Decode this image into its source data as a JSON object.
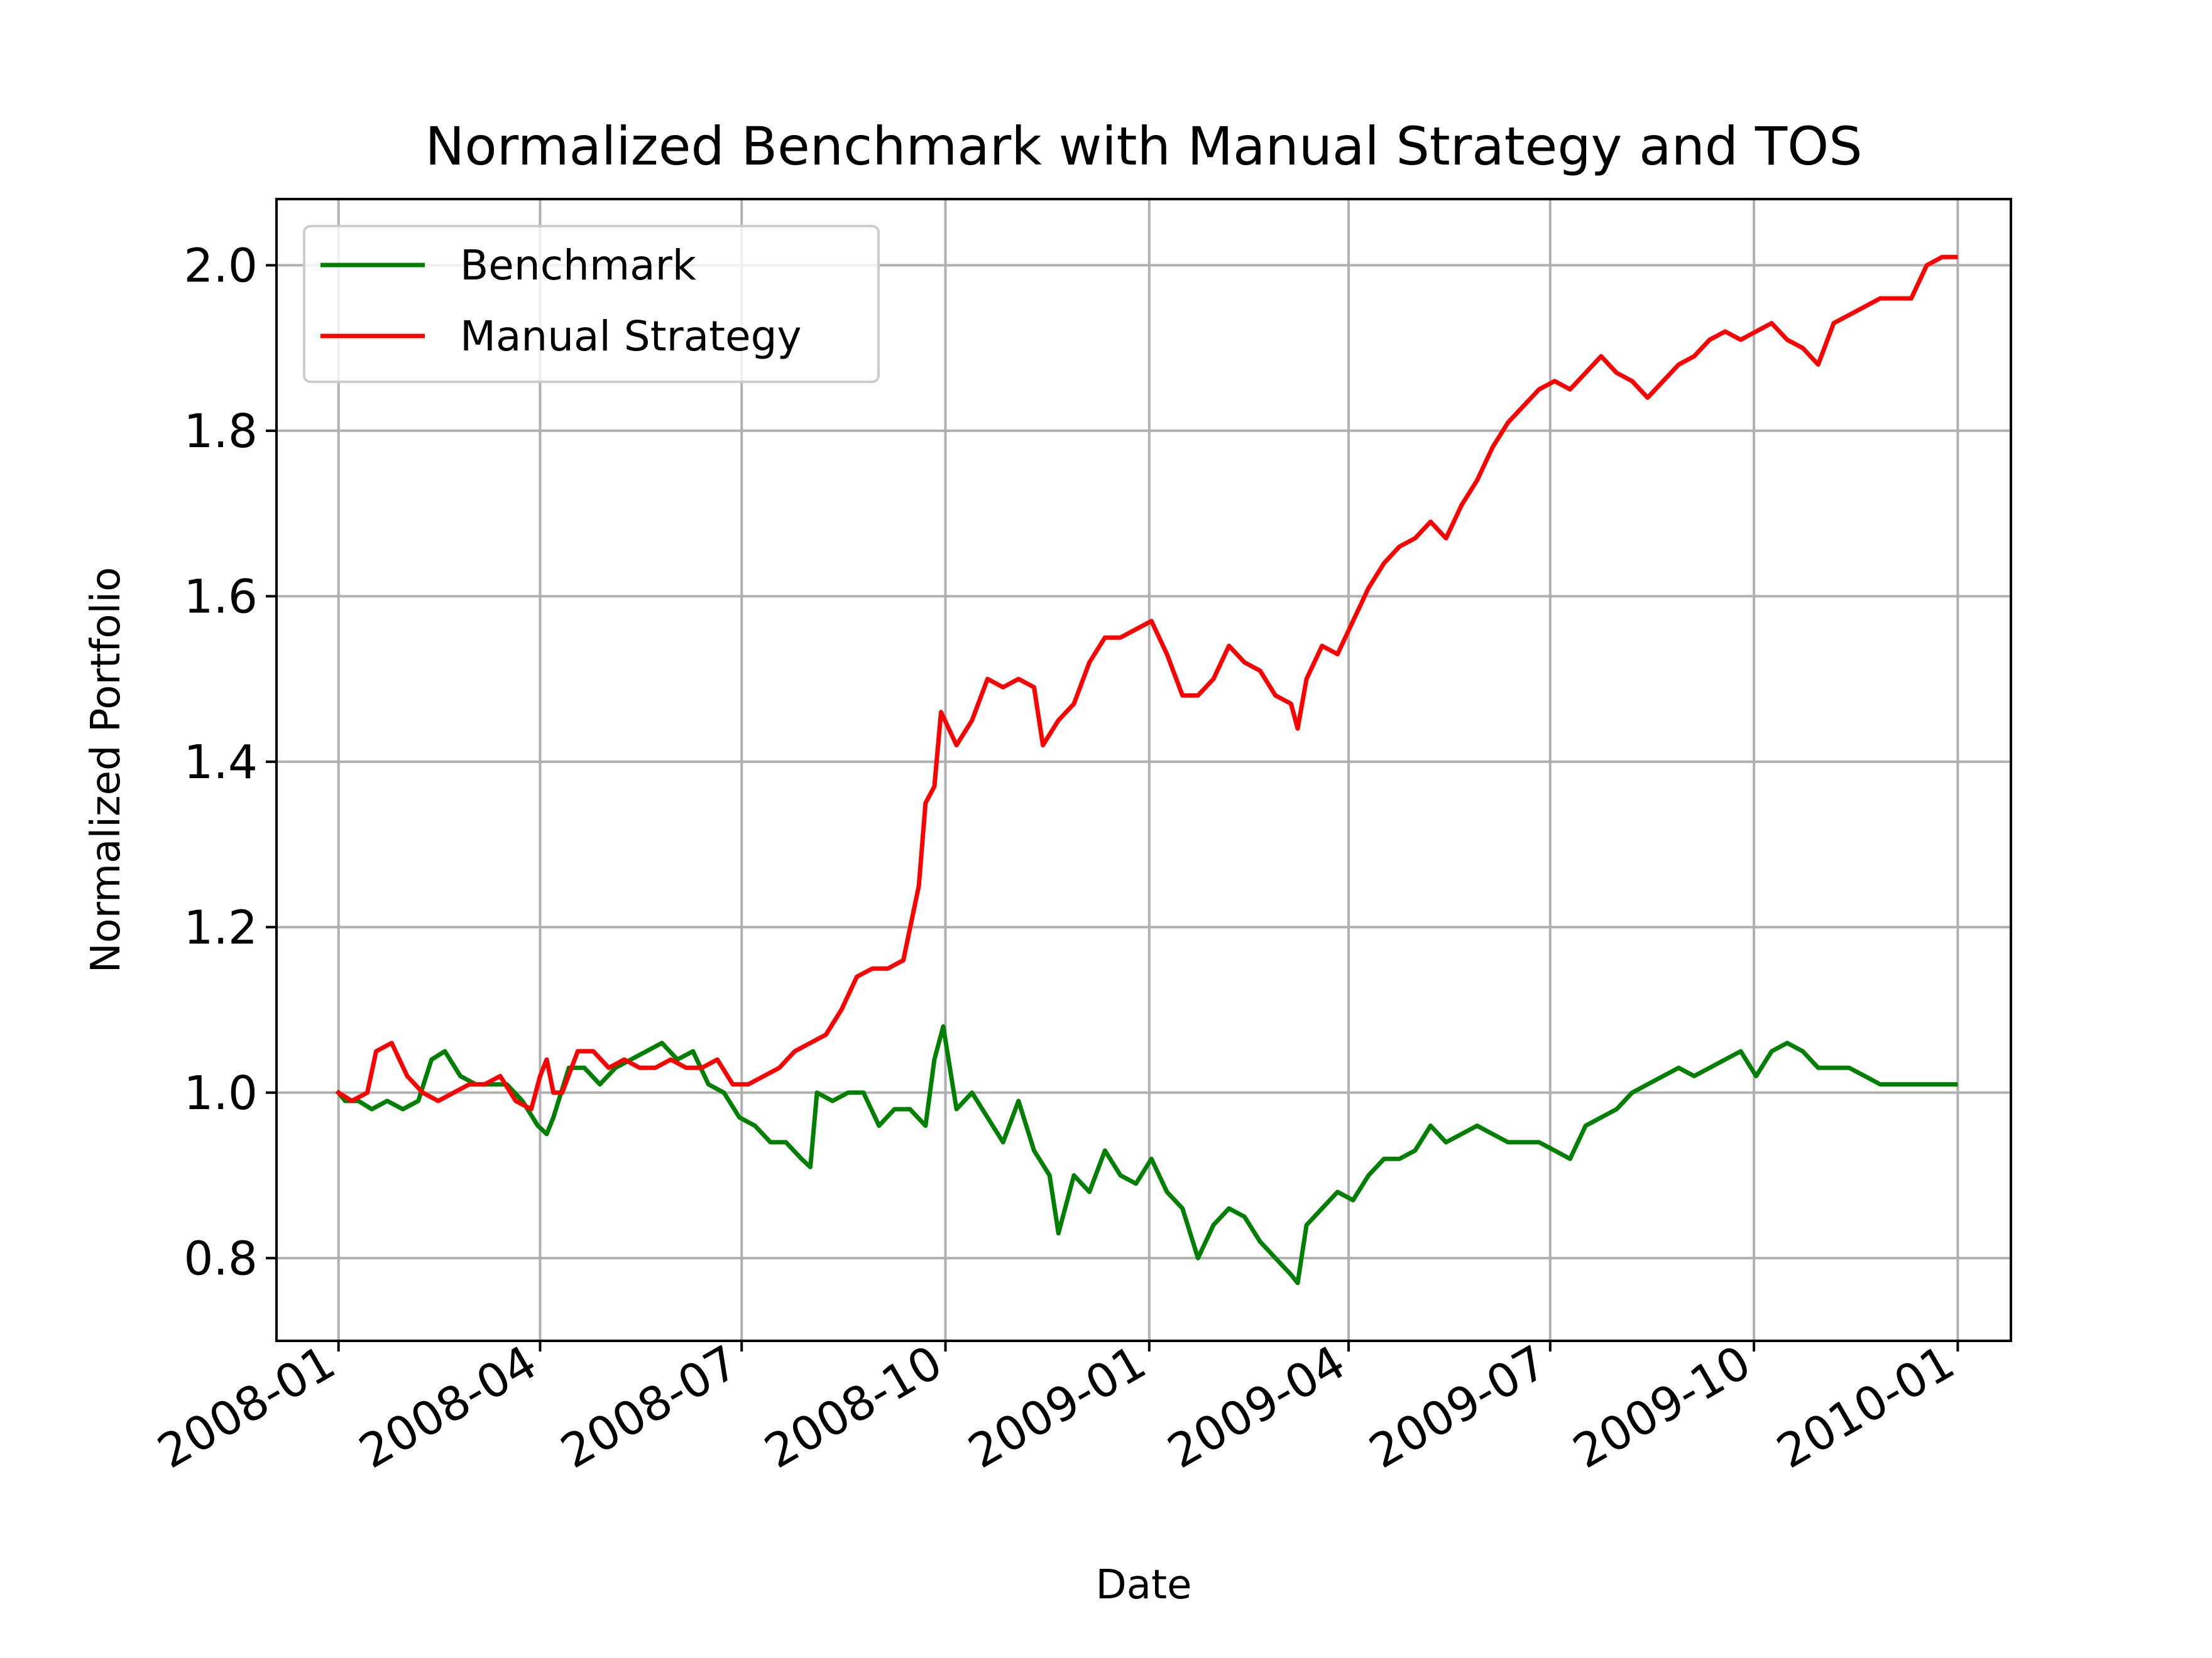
{
  "chart_data": {
    "type": "line",
    "title": "Normalized Benchmark with Manual Strategy and TOS",
    "xlabel": "Date",
    "ylabel": "Normalized Portfolio",
    "x_axis_type": "date",
    "xlim": [
      "2007-12-04",
      "2010-01-25"
    ],
    "ylim": [
      0.7,
      2.08
    ],
    "grid": true,
    "legend_position": "upper-left",
    "x_ticks": [
      {
        "date": "2008-01-01",
        "label": "2008-01"
      },
      {
        "date": "2008-04-01",
        "label": "2008-04"
      },
      {
        "date": "2008-07-01",
        "label": "2008-07"
      },
      {
        "date": "2008-10-01",
        "label": "2008-10"
      },
      {
        "date": "2009-01-01",
        "label": "2009-01"
      },
      {
        "date": "2009-04-01",
        "label": "2009-04"
      },
      {
        "date": "2009-07-01",
        "label": "2009-07"
      },
      {
        "date": "2009-10-01",
        "label": "2009-10"
      },
      {
        "date": "2010-01-01",
        "label": "2010-01"
      }
    ],
    "y_ticks": [
      {
        "value": 0.8,
        "label": "0.8"
      },
      {
        "value": 1.0,
        "label": "1.0"
      },
      {
        "value": 1.2,
        "label": "1.2"
      },
      {
        "value": 1.4,
        "label": "1.4"
      },
      {
        "value": 1.6,
        "label": "1.6"
      },
      {
        "value": 1.8,
        "label": "1.8"
      },
      {
        "value": 2.0,
        "label": "2.0"
      }
    ],
    "series": [
      {
        "name": "Benchmark",
        "color": "#008000",
        "points": [
          [
            "2008-01-01",
            1.0
          ],
          [
            "2008-01-04",
            0.99
          ],
          [
            "2008-01-10",
            0.99
          ],
          [
            "2008-01-16",
            0.98
          ],
          [
            "2008-01-23",
            0.99
          ],
          [
            "2008-01-30",
            0.98
          ],
          [
            "2008-02-06",
            0.99
          ],
          [
            "2008-02-12",
            1.04
          ],
          [
            "2008-02-18",
            1.05
          ],
          [
            "2008-02-25",
            1.02
          ],
          [
            "2008-03-03",
            1.01
          ],
          [
            "2008-03-10",
            1.01
          ],
          [
            "2008-03-17",
            1.01
          ],
          [
            "2008-03-24",
            0.99
          ],
          [
            "2008-03-31",
            0.96
          ],
          [
            "2008-04-04",
            0.95
          ],
          [
            "2008-04-07",
            0.97
          ],
          [
            "2008-04-14",
            1.03
          ],
          [
            "2008-04-21",
            1.03
          ],
          [
            "2008-04-28",
            1.01
          ],
          [
            "2008-05-05",
            1.03
          ],
          [
            "2008-05-12",
            1.04
          ],
          [
            "2008-05-19",
            1.05
          ],
          [
            "2008-05-26",
            1.06
          ],
          [
            "2008-06-02",
            1.04
          ],
          [
            "2008-06-09",
            1.05
          ],
          [
            "2008-06-16",
            1.01
          ],
          [
            "2008-06-23",
            1.0
          ],
          [
            "2008-06-30",
            0.97
          ],
          [
            "2008-07-07",
            0.96
          ],
          [
            "2008-07-14",
            0.94
          ],
          [
            "2008-07-21",
            0.94
          ],
          [
            "2008-07-28",
            0.92
          ],
          [
            "2008-08-01",
            0.91
          ],
          [
            "2008-08-04",
            1.0
          ],
          [
            "2008-08-11",
            0.99
          ],
          [
            "2008-08-18",
            1.0
          ],
          [
            "2008-08-25",
            1.0
          ],
          [
            "2008-09-01",
            0.96
          ],
          [
            "2008-09-08",
            0.98
          ],
          [
            "2008-09-15",
            0.98
          ],
          [
            "2008-09-22",
            0.96
          ],
          [
            "2008-09-26",
            1.04
          ],
          [
            "2008-09-30",
            1.08
          ],
          [
            "2008-10-06",
            0.98
          ],
          [
            "2008-10-13",
            1.0
          ],
          [
            "2008-10-20",
            0.97
          ],
          [
            "2008-10-27",
            0.94
          ],
          [
            "2008-11-03",
            0.99
          ],
          [
            "2008-11-10",
            0.93
          ],
          [
            "2008-11-17",
            0.9
          ],
          [
            "2008-11-21",
            0.83
          ],
          [
            "2008-11-28",
            0.9
          ],
          [
            "2008-12-05",
            0.88
          ],
          [
            "2008-12-12",
            0.93
          ],
          [
            "2008-12-19",
            0.9
          ],
          [
            "2008-12-26",
            0.89
          ],
          [
            "2009-01-02",
            0.92
          ],
          [
            "2009-01-09",
            0.88
          ],
          [
            "2009-01-16",
            0.86
          ],
          [
            "2009-01-23",
            0.8
          ],
          [
            "2009-01-30",
            0.84
          ],
          [
            "2009-02-06",
            0.86
          ],
          [
            "2009-02-13",
            0.85
          ],
          [
            "2009-02-20",
            0.82
          ],
          [
            "2009-02-27",
            0.8
          ],
          [
            "2009-03-06",
            0.78
          ],
          [
            "2009-03-09",
            0.77
          ],
          [
            "2009-03-13",
            0.84
          ],
          [
            "2009-03-20",
            0.86
          ],
          [
            "2009-03-27",
            0.88
          ],
          [
            "2009-04-03",
            0.87
          ],
          [
            "2009-04-10",
            0.9
          ],
          [
            "2009-04-17",
            0.92
          ],
          [
            "2009-04-24",
            0.92
          ],
          [
            "2009-05-01",
            0.93
          ],
          [
            "2009-05-08",
            0.96
          ],
          [
            "2009-05-15",
            0.94
          ],
          [
            "2009-05-22",
            0.95
          ],
          [
            "2009-05-29",
            0.96
          ],
          [
            "2009-06-05",
            0.95
          ],
          [
            "2009-06-12",
            0.94
          ],
          [
            "2009-06-19",
            0.94
          ],
          [
            "2009-06-26",
            0.94
          ],
          [
            "2009-07-03",
            0.93
          ],
          [
            "2009-07-10",
            0.92
          ],
          [
            "2009-07-17",
            0.96
          ],
          [
            "2009-07-24",
            0.97
          ],
          [
            "2009-07-31",
            0.98
          ],
          [
            "2009-08-07",
            1.0
          ],
          [
            "2009-08-14",
            1.01
          ],
          [
            "2009-08-21",
            1.02
          ],
          [
            "2009-08-28",
            1.03
          ],
          [
            "2009-09-04",
            1.02
          ],
          [
            "2009-09-11",
            1.03
          ],
          [
            "2009-09-18",
            1.04
          ],
          [
            "2009-09-25",
            1.05
          ],
          [
            "2009-10-02",
            1.02
          ],
          [
            "2009-10-09",
            1.05
          ],
          [
            "2009-10-16",
            1.06
          ],
          [
            "2009-10-23",
            1.05
          ],
          [
            "2009-10-30",
            1.03
          ],
          [
            "2009-11-06",
            1.03
          ],
          [
            "2009-11-13",
            1.03
          ],
          [
            "2009-11-20",
            1.02
          ],
          [
            "2009-11-27",
            1.01
          ],
          [
            "2009-12-04",
            1.01
          ],
          [
            "2009-12-11",
            1.01
          ],
          [
            "2009-12-18",
            1.01
          ],
          [
            "2009-12-25",
            1.01
          ],
          [
            "2009-12-31",
            1.01
          ]
        ]
      },
      {
        "name": "Manual Strategy",
        "color": "#ff0000",
        "points": [
          [
            "2008-01-01",
            1.0
          ],
          [
            "2008-01-07",
            0.99
          ],
          [
            "2008-01-14",
            1.0
          ],
          [
            "2008-01-18",
            1.05
          ],
          [
            "2008-01-25",
            1.06
          ],
          [
            "2008-02-01",
            1.02
          ],
          [
            "2008-02-08",
            1.0
          ],
          [
            "2008-02-15",
            0.99
          ],
          [
            "2008-02-22",
            1.0
          ],
          [
            "2008-02-29",
            1.01
          ],
          [
            "2008-03-07",
            1.01
          ],
          [
            "2008-03-14",
            1.02
          ],
          [
            "2008-03-21",
            0.99
          ],
          [
            "2008-03-28",
            0.98
          ],
          [
            "2008-04-01",
            1.02
          ],
          [
            "2008-04-04",
            1.04
          ],
          [
            "2008-04-07",
            1.0
          ],
          [
            "2008-04-11",
            1.0
          ],
          [
            "2008-04-18",
            1.05
          ],
          [
            "2008-04-25",
            1.05
          ],
          [
            "2008-05-02",
            1.03
          ],
          [
            "2008-05-09",
            1.04
          ],
          [
            "2008-05-16",
            1.03
          ],
          [
            "2008-05-23",
            1.03
          ],
          [
            "2008-05-30",
            1.04
          ],
          [
            "2008-06-06",
            1.03
          ],
          [
            "2008-06-13",
            1.03
          ],
          [
            "2008-06-20",
            1.04
          ],
          [
            "2008-06-27",
            1.01
          ],
          [
            "2008-07-04",
            1.01
          ],
          [
            "2008-07-11",
            1.02
          ],
          [
            "2008-07-18",
            1.03
          ],
          [
            "2008-07-25",
            1.05
          ],
          [
            "2008-08-01",
            1.06
          ],
          [
            "2008-08-08",
            1.07
          ],
          [
            "2008-08-15",
            1.1
          ],
          [
            "2008-08-22",
            1.14
          ],
          [
            "2008-08-29",
            1.15
          ],
          [
            "2008-09-05",
            1.15
          ],
          [
            "2008-09-12",
            1.16
          ],
          [
            "2008-09-19",
            1.25
          ],
          [
            "2008-09-22",
            1.35
          ],
          [
            "2008-09-26",
            1.37
          ],
          [
            "2008-09-29",
            1.46
          ],
          [
            "2008-10-06",
            1.42
          ],
          [
            "2008-10-13",
            1.45
          ],
          [
            "2008-10-20",
            1.5
          ],
          [
            "2008-10-27",
            1.49
          ],
          [
            "2008-11-03",
            1.5
          ],
          [
            "2008-11-10",
            1.49
          ],
          [
            "2008-11-14",
            1.42
          ],
          [
            "2008-11-21",
            1.45
          ],
          [
            "2008-11-28",
            1.47
          ],
          [
            "2008-12-05",
            1.52
          ],
          [
            "2008-12-12",
            1.55
          ],
          [
            "2008-12-19",
            1.55
          ],
          [
            "2008-12-26",
            1.56
          ],
          [
            "2009-01-02",
            1.57
          ],
          [
            "2009-01-09",
            1.53
          ],
          [
            "2009-01-16",
            1.48
          ],
          [
            "2009-01-23",
            1.48
          ],
          [
            "2009-01-30",
            1.5
          ],
          [
            "2009-02-06",
            1.54
          ],
          [
            "2009-02-13",
            1.52
          ],
          [
            "2009-02-20",
            1.51
          ],
          [
            "2009-02-27",
            1.48
          ],
          [
            "2009-03-06",
            1.47
          ],
          [
            "2009-03-09",
            1.44
          ],
          [
            "2009-03-13",
            1.5
          ],
          [
            "2009-03-20",
            1.54
          ],
          [
            "2009-03-27",
            1.53
          ],
          [
            "2009-04-03",
            1.57
          ],
          [
            "2009-04-10",
            1.61
          ],
          [
            "2009-04-17",
            1.64
          ],
          [
            "2009-04-24",
            1.66
          ],
          [
            "2009-05-01",
            1.67
          ],
          [
            "2009-05-08",
            1.69
          ],
          [
            "2009-05-15",
            1.67
          ],
          [
            "2009-05-22",
            1.71
          ],
          [
            "2009-05-29",
            1.74
          ],
          [
            "2009-06-05",
            1.78
          ],
          [
            "2009-06-12",
            1.81
          ],
          [
            "2009-06-19",
            1.83
          ],
          [
            "2009-06-26",
            1.85
          ],
          [
            "2009-07-03",
            1.86
          ],
          [
            "2009-07-10",
            1.85
          ],
          [
            "2009-07-17",
            1.87
          ],
          [
            "2009-07-24",
            1.89
          ],
          [
            "2009-07-31",
            1.87
          ],
          [
            "2009-08-07",
            1.86
          ],
          [
            "2009-08-14",
            1.84
          ],
          [
            "2009-08-21",
            1.86
          ],
          [
            "2009-08-28",
            1.88
          ],
          [
            "2009-09-04",
            1.89
          ],
          [
            "2009-09-11",
            1.91
          ],
          [
            "2009-09-18",
            1.92
          ],
          [
            "2009-09-25",
            1.91
          ],
          [
            "2009-10-02",
            1.92
          ],
          [
            "2009-10-09",
            1.93
          ],
          [
            "2009-10-16",
            1.91
          ],
          [
            "2009-10-23",
            1.9
          ],
          [
            "2009-10-30",
            1.88
          ],
          [
            "2009-11-06",
            1.93
          ],
          [
            "2009-11-13",
            1.94
          ],
          [
            "2009-11-20",
            1.95
          ],
          [
            "2009-11-27",
            1.96
          ],
          [
            "2009-12-04",
            1.96
          ],
          [
            "2009-12-11",
            1.96
          ],
          [
            "2009-12-18",
            2.0
          ],
          [
            "2009-12-25",
            2.01
          ],
          [
            "2009-12-31",
            2.01
          ]
        ]
      }
    ]
  }
}
